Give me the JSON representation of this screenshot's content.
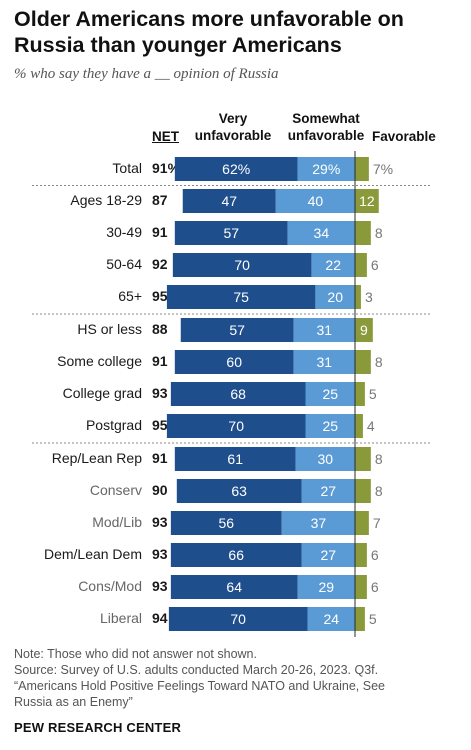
{
  "title": "Older Americans more unfavorable on Russia than younger Americans",
  "subtitle": "% who say they have a __ opinion of Russia",
  "headers": {
    "net": "NET",
    "very": "Very unfavorable",
    "somewhat": "Somewhat unfavorable",
    "favorable": "Favorable"
  },
  "colors": {
    "very": "#1f4e8c",
    "somewhat": "#5b9bd5",
    "favorable": "#8a9a3a",
    "sublabel": "#666666"
  },
  "chart_data": {
    "type": "bar",
    "stacked": "diverging",
    "series_names": [
      "Very unfavorable",
      "Somewhat unfavorable",
      "Favorable"
    ],
    "rows": [
      {
        "label": "Total",
        "net": "91%",
        "very": 62,
        "very_label": "62%",
        "somewhat": 29,
        "somewhat_label": "29%",
        "favorable": 7,
        "favorable_label": "7%",
        "sub": false
      },
      {
        "label": "Ages 18-29",
        "net": "87",
        "very": 47,
        "very_label": "47",
        "somewhat": 40,
        "somewhat_label": "40",
        "favorable": 12,
        "favorable_label": "12",
        "sub": false
      },
      {
        "label": "30-49",
        "net": "91",
        "very": 57,
        "very_label": "57",
        "somewhat": 34,
        "somewhat_label": "34",
        "favorable": 8,
        "favorable_label": "8",
        "sub": false
      },
      {
        "label": "50-64",
        "net": "92",
        "very": 70,
        "very_label": "70",
        "somewhat": 22,
        "somewhat_label": "22",
        "favorable": 6,
        "favorable_label": "6",
        "sub": false
      },
      {
        "label": "65+",
        "net": "95",
        "very": 75,
        "very_label": "75",
        "somewhat": 20,
        "somewhat_label": "20",
        "favorable": 3,
        "favorable_label": "3",
        "sub": false
      },
      {
        "label": "HS or less",
        "net": "88",
        "very": 57,
        "very_label": "57",
        "somewhat": 31,
        "somewhat_label": "31",
        "favorable": 9,
        "favorable_label": "9",
        "sub": false
      },
      {
        "label": "Some college",
        "net": "91",
        "very": 60,
        "very_label": "60",
        "somewhat": 31,
        "somewhat_label": "31",
        "favorable": 8,
        "favorable_label": "8",
        "sub": false
      },
      {
        "label": "College grad",
        "net": "93",
        "very": 68,
        "very_label": "68",
        "somewhat": 25,
        "somewhat_label": "25",
        "favorable": 5,
        "favorable_label": "5",
        "sub": false
      },
      {
        "label": "Postgrad",
        "net": "95",
        "very": 70,
        "very_label": "70",
        "somewhat": 25,
        "somewhat_label": "25",
        "favorable": 4,
        "favorable_label": "4",
        "sub": false
      },
      {
        "label": "Rep/Lean Rep",
        "net": "91",
        "very": 61,
        "very_label": "61",
        "somewhat": 30,
        "somewhat_label": "30",
        "favorable": 8,
        "favorable_label": "8",
        "sub": false
      },
      {
        "label": "Conserv",
        "net": "90",
        "very": 63,
        "very_label": "63",
        "somewhat": 27,
        "somewhat_label": "27",
        "favorable": 8,
        "favorable_label": "8",
        "sub": true
      },
      {
        "label": "Mod/Lib",
        "net": "93",
        "very": 56,
        "very_label": "56",
        "somewhat": 37,
        "somewhat_label": "37",
        "favorable": 7,
        "favorable_label": "7",
        "sub": true
      },
      {
        "label": "Dem/Lean Dem",
        "net": "93",
        "very": 66,
        "very_label": "66",
        "somewhat": 27,
        "somewhat_label": "27",
        "favorable": 6,
        "favorable_label": "6",
        "sub": false
      },
      {
        "label": "Cons/Mod",
        "net": "93",
        "very": 64,
        "very_label": "64",
        "somewhat": 29,
        "somewhat_label": "29",
        "favorable": 6,
        "favorable_label": "6",
        "sub": true
      },
      {
        "label": "Liberal",
        "net": "94",
        "very": 70,
        "very_label": "70",
        "somewhat": 24,
        "somewhat_label": "24",
        "favorable": 5,
        "favorable_label": "5",
        "sub": true
      }
    ]
  },
  "note_lines": [
    "Note: Those who did not answer not shown.",
    "Source: Survey of U.S. adults conducted March 20-26, 2023. Q3f.",
    "“Americans Hold Positive Feelings Toward NATO and Ukraine, See",
    "Russia as an Enemy”"
  ],
  "footer": "PEW RESEARCH CENTER"
}
